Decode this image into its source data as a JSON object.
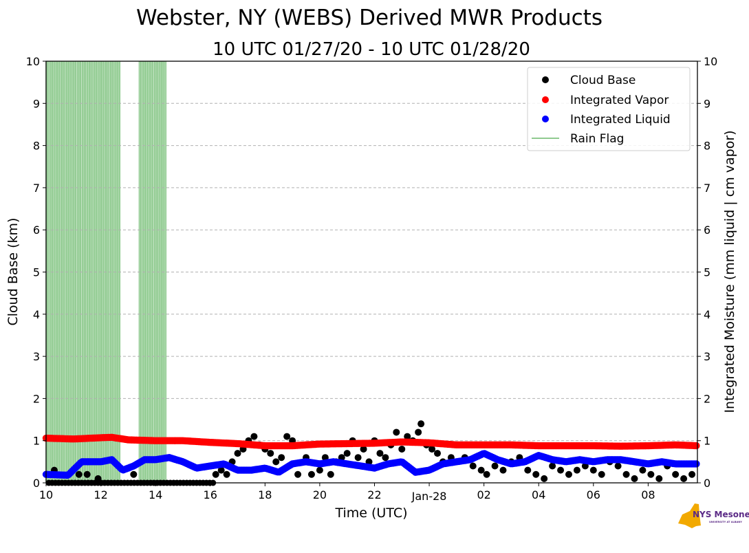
{
  "chart_data": {
    "type": "scatter",
    "title": "Webster, NY (WEBS) Derived MWR Products",
    "subtitle": "10 UTC 01/27/20 - 10 UTC 01/28/20",
    "xlabel": "Time (UTC)",
    "ylabel": "Cloud Base (km)",
    "y2label": "Integrated Moisture (mm liquid | cm vapor)",
    "x_ticks": [
      "10",
      "12",
      "14",
      "16",
      "18",
      "20",
      "22",
      "Jan-28",
      "02",
      "04",
      "06",
      "08"
    ],
    "x_range_hours": [
      10,
      33.8
    ],
    "ylim": [
      0,
      10
    ],
    "y2lim": [
      0,
      10
    ],
    "y_ticks": [
      "0",
      "1",
      "2",
      "3",
      "4",
      "5",
      "6",
      "7",
      "8",
      "9",
      "10"
    ],
    "grid": true,
    "legend_position": "top-right",
    "colors": {
      "cloud_base": "#000000",
      "vapor": "#ff0000",
      "liquid": "#0000ff",
      "rain": "#6ab96a"
    },
    "rain_flag_periods": [
      [
        10.0,
        12.7
      ],
      [
        13.4,
        14.4
      ]
    ],
    "series": [
      {
        "name": "Cloud Base",
        "marker": "dot",
        "points": [
          [
            10.3,
            0.3
          ],
          [
            11.2,
            0.2
          ],
          [
            11.5,
            0.2
          ],
          [
            11.9,
            0.1
          ],
          [
            13.2,
            0.2
          ],
          [
            16.2,
            0.2
          ],
          [
            16.4,
            0.3
          ],
          [
            16.6,
            0.2
          ],
          [
            16.8,
            0.5
          ],
          [
            17.0,
            0.7
          ],
          [
            17.2,
            0.8
          ],
          [
            17.4,
            1.0
          ],
          [
            17.6,
            1.1
          ],
          [
            17.8,
            0.9
          ],
          [
            18.0,
            0.8
          ],
          [
            18.2,
            0.7
          ],
          [
            18.4,
            0.5
          ],
          [
            18.6,
            0.6
          ],
          [
            18.8,
            1.1
          ],
          [
            19.0,
            1.0
          ],
          [
            19.2,
            0.2
          ],
          [
            19.5,
            0.6
          ],
          [
            19.7,
            0.2
          ],
          [
            20.0,
            0.3
          ],
          [
            20.2,
            0.6
          ],
          [
            20.4,
            0.2
          ],
          [
            20.6,
            0.5
          ],
          [
            20.8,
            0.6
          ],
          [
            21.0,
            0.7
          ],
          [
            21.2,
            1.0
          ],
          [
            21.4,
            0.6
          ],
          [
            21.6,
            0.8
          ],
          [
            21.8,
            0.5
          ],
          [
            22.0,
            1.0
          ],
          [
            22.2,
            0.7
          ],
          [
            22.4,
            0.6
          ],
          [
            22.6,
            0.9
          ],
          [
            22.8,
            1.2
          ],
          [
            23.0,
            0.8
          ],
          [
            23.2,
            1.1
          ],
          [
            23.4,
            1.0
          ],
          [
            23.6,
            1.2
          ],
          [
            23.7,
            1.4
          ],
          [
            23.9,
            0.9
          ],
          [
            24.1,
            0.8
          ],
          [
            24.3,
            0.7
          ],
          [
            24.5,
            0.5
          ],
          [
            24.8,
            0.6
          ],
          [
            25.0,
            0.5
          ],
          [
            25.3,
            0.6
          ],
          [
            25.6,
            0.4
          ],
          [
            25.9,
            0.3
          ],
          [
            26.1,
            0.2
          ],
          [
            26.4,
            0.4
          ],
          [
            26.7,
            0.3
          ],
          [
            27.0,
            0.5
          ],
          [
            27.3,
            0.6
          ],
          [
            27.6,
            0.3
          ],
          [
            27.9,
            0.2
          ],
          [
            28.2,
            0.1
          ],
          [
            28.5,
            0.4
          ],
          [
            28.8,
            0.3
          ],
          [
            29.1,
            0.2
          ],
          [
            29.4,
            0.3
          ],
          [
            29.7,
            0.4
          ],
          [
            30.0,
            0.3
          ],
          [
            30.3,
            0.2
          ],
          [
            30.6,
            0.5
          ],
          [
            30.9,
            0.4
          ],
          [
            31.2,
            0.2
          ],
          [
            31.5,
            0.1
          ],
          [
            31.8,
            0.3
          ],
          [
            32.1,
            0.2
          ],
          [
            32.4,
            0.1
          ],
          [
            32.7,
            0.4
          ],
          [
            33.0,
            0.2
          ],
          [
            33.3,
            0.1
          ],
          [
            33.6,
            0.2
          ]
        ],
        "baseline_points_note": "many values at 0 km between 10 and 16 UTC"
      },
      {
        "name": "Integrated Vapor",
        "marker": "dot",
        "x": [
          10,
          11,
          12,
          12.4,
          13,
          14,
          15,
          16,
          17,
          18,
          19,
          20,
          21,
          22,
          23,
          24,
          25,
          26,
          27,
          28,
          29,
          30,
          31,
          32,
          33,
          33.8
        ],
        "values": [
          1.06,
          1.04,
          1.07,
          1.08,
          1.02,
          1.0,
          1.0,
          0.96,
          0.93,
          0.88,
          0.88,
          0.92,
          0.93,
          0.94,
          0.97,
          0.95,
          0.9,
          0.9,
          0.9,
          0.88,
          0.88,
          0.88,
          0.87,
          0.88,
          0.9,
          0.88
        ]
      },
      {
        "name": "Integrated Liquid",
        "marker": "dot",
        "x": [
          10,
          10.8,
          11.3,
          11.6,
          12.0,
          12.4,
          12.8,
          13.2,
          13.6,
          14.0,
          14.5,
          15.0,
          15.5,
          16.0,
          16.5,
          17.0,
          17.5,
          18.0,
          18.5,
          19.0,
          19.5,
          20.0,
          20.5,
          21.0,
          21.5,
          22.0,
          22.5,
          23.0,
          23.5,
          24.0,
          24.5,
          25.0,
          25.5,
          26.0,
          26.5,
          27.0,
          27.5,
          28.0,
          28.5,
          29.0,
          29.5,
          30.0,
          30.5,
          31.0,
          31.5,
          32.0,
          32.5,
          33.0,
          33.8
        ],
        "values": [
          0.2,
          0.18,
          0.5,
          0.5,
          0.5,
          0.55,
          0.3,
          0.4,
          0.55,
          0.55,
          0.6,
          0.5,
          0.35,
          0.4,
          0.45,
          0.3,
          0.3,
          0.35,
          0.25,
          0.45,
          0.5,
          0.45,
          0.5,
          0.45,
          0.4,
          0.35,
          0.45,
          0.5,
          0.25,
          0.3,
          0.45,
          0.5,
          0.55,
          0.7,
          0.55,
          0.45,
          0.5,
          0.65,
          0.55,
          0.5,
          0.55,
          0.5,
          0.55,
          0.55,
          0.5,
          0.45,
          0.5,
          0.45,
          0.45
        ]
      },
      {
        "name": "Rain Flag",
        "marker": "line"
      }
    ]
  },
  "logo": {
    "text": "NYS Mesonet",
    "subtext": "UNIVERSITY AT ALBANY"
  }
}
